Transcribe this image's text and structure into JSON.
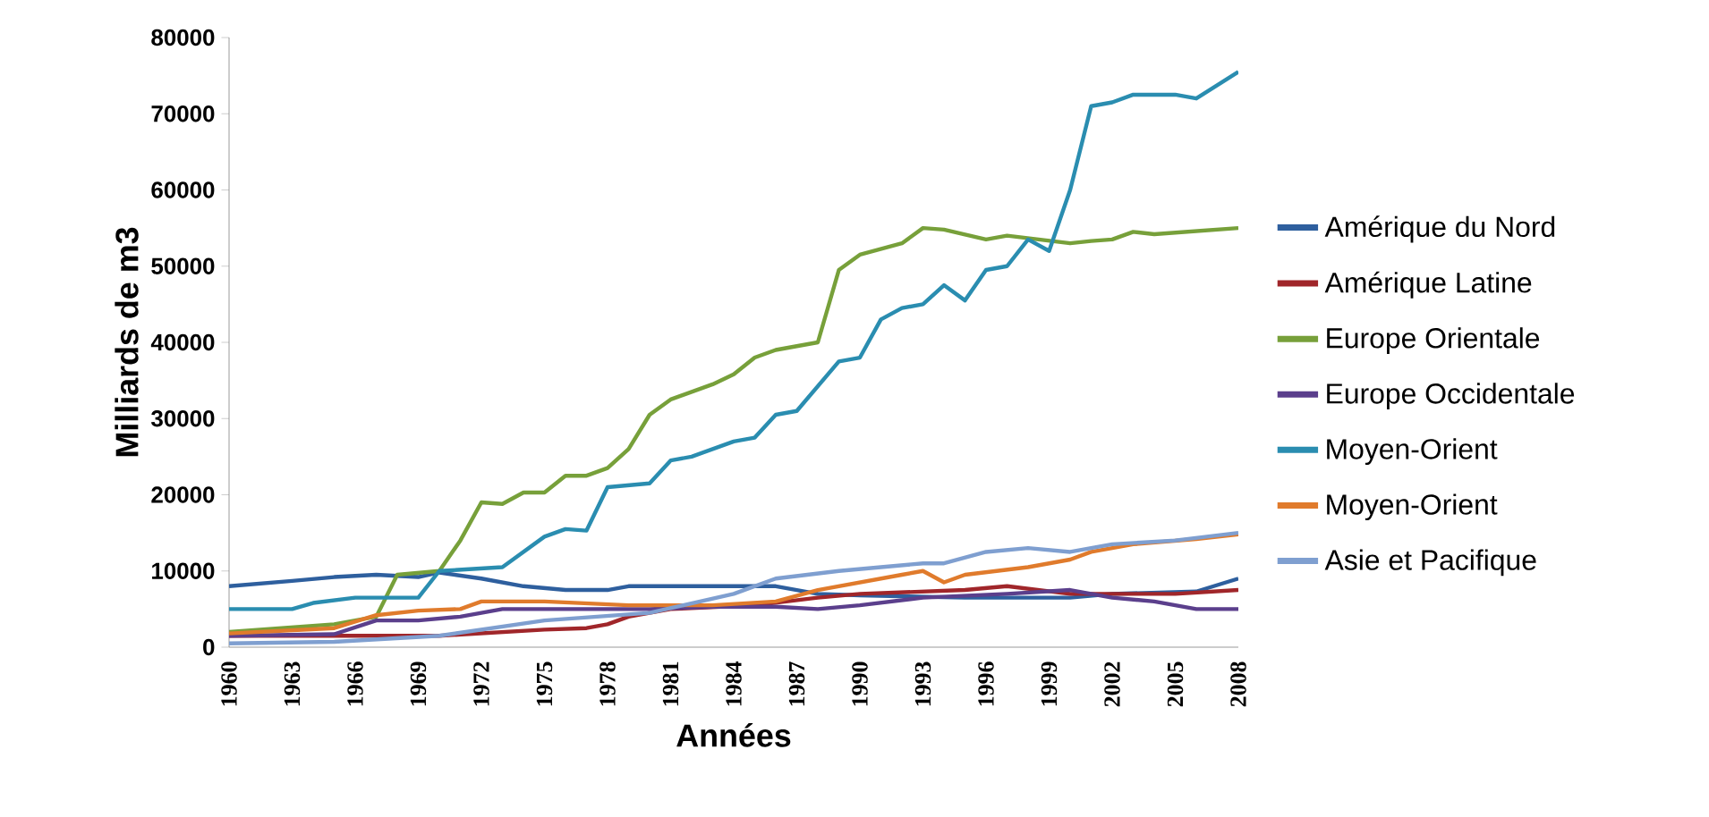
{
  "chart_data": {
    "type": "line",
    "xlabel": "Années",
    "ylabel": "Milliards de m3",
    "xlim": [
      1960,
      2008
    ],
    "xticks": [
      1960,
      1963,
      1966,
      1969,
      1972,
      1975,
      1978,
      1981,
      1984,
      1987,
      1990,
      1993,
      1996,
      1999,
      2002,
      2005,
      2008
    ],
    "ylim": [
      0,
      80000
    ],
    "yticks": [
      0,
      10000,
      20000,
      30000,
      40000,
      50000,
      60000,
      70000,
      80000
    ],
    "legend": "right",
    "series": [
      {
        "name": "Amérique du Nord",
        "color": "#2e5f9e",
        "x": [
          1960,
          1963,
          1965,
          1967,
          1969,
          1970,
          1972,
          1974,
          1976,
          1978,
          1979,
          1985,
          1986,
          1988,
          1990,
          1995,
          2000,
          2002,
          2006,
          2008
        ],
        "values": [
          8000,
          8700,
          9200,
          9500,
          9200,
          9800,
          9000,
          8000,
          7500,
          7500,
          8000,
          8000,
          8000,
          7000,
          6800,
          6500,
          6500,
          7000,
          7300,
          9000
        ]
      },
      {
        "name": "Amérique Latine",
        "color": "#a0262a",
        "x": [
          1960,
          1965,
          1970,
          1975,
          1977,
          1978,
          1979,
          1981,
          1985,
          1988,
          1990,
          1995,
          1997,
          2000,
          2005,
          2008
        ],
        "values": [
          1500,
          1500,
          1500,
          2300,
          2500,
          3000,
          4000,
          5000,
          5500,
          6500,
          7000,
          7500,
          8000,
          7000,
          7000,
          7500
        ]
      },
      {
        "name": "Europe Orientale",
        "color": "#77a03a",
        "x": [
          1960,
          1965,
          1967,
          1968,
          1970,
          1971,
          1972,
          1973,
          1974,
          1975,
          1976,
          1977,
          1978,
          1979,
          1980,
          1981,
          1983,
          1984,
          1985,
          1986,
          1988,
          1989,
          1990,
          1992,
          1993,
          1994,
          1996,
          1997,
          2000,
          2001,
          2002,
          2003,
          2004,
          2008
        ],
        "values": [
          2000,
          3000,
          4000,
          9500,
          10000,
          14000,
          19000,
          18800,
          20300,
          20300,
          22500,
          22500,
          23500,
          26000,
          30500,
          32500,
          34500,
          35800,
          38000,
          39000,
          40000,
          49500,
          51500,
          53000,
          55000,
          54800,
          53500,
          54000,
          53000,
          53300,
          53500,
          54500,
          54200,
          55000
        ]
      },
      {
        "name": "Europe Occidentale",
        "color": "#5b3f8c",
        "x": [
          1960,
          1965,
          1967,
          1969,
          1971,
          1973,
          1976,
          1980,
          1983,
          1986,
          1988,
          1990,
          1993,
          1997,
          2000,
          2002,
          2004,
          2006,
          2008
        ],
        "values": [
          1500,
          1700,
          3500,
          3500,
          4000,
          5000,
          5000,
          5000,
          5300,
          5300,
          5000,
          5500,
          6500,
          7000,
          7500,
          6500,
          6000,
          5000,
          5000
        ]
      },
      {
        "name": "Moyen-Orient",
        "color": "#2a8db0",
        "x": [
          1960,
          1963,
          1964,
          1966,
          1969,
          1970,
          1973,
          1975,
          1976,
          1977,
          1978,
          1980,
          1981,
          1982,
          1984,
          1985,
          1986,
          1987,
          1989,
          1990,
          1991,
          1992,
          1993,
          1994,
          1995,
          1996,
          1997,
          1998,
          1999,
          2000,
          2001,
          2002,
          2003,
          2005,
          2006,
          2008
        ],
        "values": [
          5000,
          5000,
          5800,
          6500,
          6500,
          10000,
          10500,
          14500,
          15500,
          15300,
          21000,
          21500,
          24500,
          25000,
          27000,
          27500,
          30500,
          31000,
          37500,
          38000,
          43000,
          44500,
          45000,
          47500,
          45500,
          49500,
          50000,
          53500,
          52000,
          60000,
          71000,
          71500,
          72500,
          72500,
          72000,
          75500
        ]
      },
      {
        "name": "Moyen-Orient",
        "color": "#e07b2c",
        "x": [
          1960,
          1965,
          1967,
          1969,
          1971,
          1972,
          1975,
          1979,
          1983,
          1986,
          1988,
          1990,
          1992,
          1993,
          1994,
          1995,
          1998,
          2000,
          2001,
          2003,
          2006,
          2008
        ],
        "values": [
          1800,
          2500,
          4200,
          4800,
          5000,
          6000,
          6000,
          5500,
          5500,
          6000,
          7500,
          8500,
          9500,
          10000,
          8500,
          9500,
          10500,
          11500,
          12500,
          13500,
          14200,
          14800
        ]
      },
      {
        "name": "Asie et Pacifique",
        "color": "#7f9fd0",
        "x": [
          1960,
          1965,
          1970,
          1975,
          1980,
          1984,
          1986,
          1989,
          1991,
          1993,
          1994,
          1996,
          1998,
          2000,
          2002,
          2005,
          2008
        ],
        "values": [
          500,
          700,
          1500,
          3500,
          4500,
          7000,
          9000,
          10000,
          10500,
          11000,
          11000,
          12500,
          13000,
          12500,
          13500,
          14000,
          15000
        ]
      }
    ]
  }
}
